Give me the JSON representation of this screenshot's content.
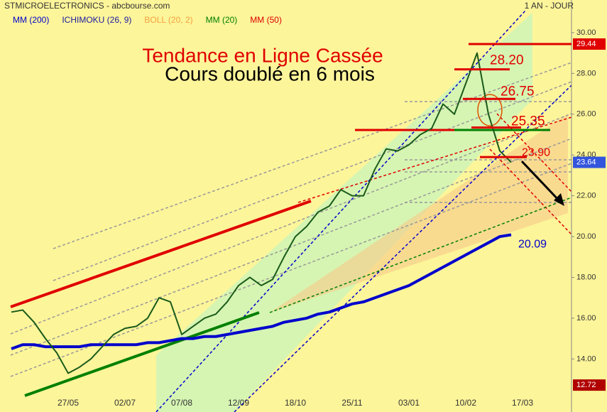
{
  "chart_data": {
    "type": "line",
    "title": "STMICROELECTRONICS - abcbourse.com",
    "period": "1 AN - JOUR",
    "headline": "Tendance en Ligne Cassée",
    "subheadline": "Cours doublé en 6 mois",
    "legend": [
      {
        "name": "MM (200)",
        "color": "#0000cc"
      },
      {
        "name": "ICHIMOKU (26, 9)",
        "color": "#1a1aa0"
      },
      {
        "name": "BOLL (20, 2)",
        "color": "#f5a040"
      },
      {
        "name": "MM (20)",
        "color": "#008000"
      },
      {
        "name": "MM (50)",
        "color": "#e00000"
      }
    ],
    "categories": [
      null,
      null,
      null,
      null,
      null,
      "27/05",
      null,
      null,
      null,
      null,
      "02/07",
      null,
      null,
      null,
      null,
      "07/08",
      null,
      null,
      null,
      null,
      "12/09",
      null,
      null,
      null,
      null,
      "18/10",
      null,
      null,
      null,
      null,
      "25/11",
      null,
      null,
      null,
      null,
      "03/01",
      null,
      null,
      null,
      null,
      "10/02",
      null,
      null,
      null,
      null,
      "17/03",
      null,
      null,
      null
    ],
    "values": [
      16.3,
      16.4,
      15.8,
      15.0,
      14.3,
      13.3,
      13.6,
      14.0,
      14.6,
      15.2,
      15.5,
      15.6,
      16.0,
      17.0,
      16.8,
      15.2,
      15.6,
      16.0,
      16.2,
      16.8,
      17.6,
      18.0,
      17.6,
      17.9,
      19.0,
      20.0,
      20.5,
      21.2,
      21.5,
      22.3,
      22.0,
      22.0,
      23.3,
      24.3,
      24.2,
      24.5,
      25.0,
      25.3,
      26.5,
      26.0,
      27.5,
      29.0,
      26.0,
      24.2,
      23.64,
      null,
      null,
      null,
      null
    ],
    "color": "#1a5a1a",
    "mm200": [
      14.5,
      14.7,
      14.7,
      14.6,
      14.6,
      14.6,
      14.6,
      14.7,
      14.7,
      14.7,
      14.7,
      14.7,
      14.8,
      14.8,
      14.9,
      15.0,
      15.0,
      15.1,
      15.1,
      15.2,
      15.3,
      15.4,
      15.5,
      15.6,
      15.8,
      15.9,
      16.0,
      16.2,
      16.3,
      16.5,
      16.7,
      16.8,
      17.0,
      17.2,
      17.4,
      17.6,
      17.9,
      18.2,
      18.5,
      18.8,
      19.1,
      19.4,
      19.7,
      20.0,
      20.09,
      null,
      null,
      null,
      null
    ],
    "mm200_color": "#0000cc",
    "ylim": [
      11.4,
      31.6
    ],
    "yticks": [
      {
        "value": 14,
        "label": "14.00"
      },
      {
        "value": 16,
        "label": "16.00"
      },
      {
        "value": 18,
        "label": "18.00"
      },
      {
        "value": 20,
        "label": "20.00"
      },
      {
        "value": 22,
        "label": "22.00"
      },
      {
        "value": 24,
        "label": "24.00"
      },
      {
        "value": 26,
        "label": "26.00"
      },
      {
        "value": 28,
        "label": "28.00"
      },
      {
        "value": 30,
        "label": "30.00"
      }
    ],
    "levels": [
      {
        "value": 28.2,
        "label": "28.20",
        "color": "#e00000"
      },
      {
        "value": 26.75,
        "label": "26.75",
        "color": "#e00000"
      },
      {
        "value": 25.35,
        "label": "25.35",
        "color": "#e00000"
      },
      {
        "value": 23.9,
        "label": "23.90",
        "color": "#e00000"
      }
    ],
    "mm200_label": {
      "value": 20.09,
      "label": "20.09"
    },
    "price_tags": [
      {
        "value": 29.44,
        "label": "29.44",
        "color": "#e00000"
      },
      {
        "value": 23.64,
        "label": "23.64",
        "color": "#3355dd"
      },
      {
        "value": 12.72,
        "label": "12.72",
        "color": "#b00000"
      }
    ]
  }
}
